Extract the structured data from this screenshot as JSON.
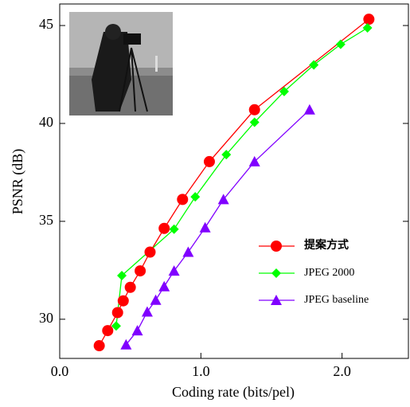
{
  "chart_data": {
    "type": "line",
    "x_label": "Coding rate (bits/pel)",
    "y_label": "PSNR (dB)",
    "xlim": [
      0,
      2.47
    ],
    "ylim": [
      28.0,
      46.1
    ],
    "xticks": [
      {
        "value": 0,
        "label": "0.0"
      },
      {
        "value": 1,
        "label": "1.0"
      },
      {
        "value": 2,
        "label": "2.0"
      }
    ],
    "yticks": [
      30,
      35,
      40,
      45
    ],
    "series": [
      {
        "name": "提案方式",
        "color": "#ff0000",
        "marker": "circle",
        "x": [
          0.28,
          0.34,
          0.41,
          0.45,
          0.5,
          0.57,
          0.64,
          0.74,
          0.87,
          1.06,
          1.38,
          2.19
        ],
        "values": [
          28.65,
          29.42,
          30.34,
          30.94,
          31.63,
          32.47,
          33.43,
          34.64,
          36.12,
          38.05,
          40.7,
          45.32
        ]
      },
      {
        "name": "JPEG 2000",
        "color": "#00ff00",
        "marker": "diamond",
        "x": [
          0.4,
          0.44,
          0.81,
          0.96,
          1.18,
          1.38,
          1.59,
          1.8,
          1.99,
          2.18
        ],
        "values": [
          29.66,
          32.23,
          34.6,
          36.25,
          38.41,
          40.06,
          41.63,
          42.99,
          44.04,
          44.88
        ]
      },
      {
        "name": "JPEG baseline",
        "color": "#8000ff",
        "marker": "triangle",
        "x": [
          0.47,
          0.55,
          0.62,
          0.68,
          0.74,
          0.81,
          0.91,
          1.03,
          1.16,
          1.38,
          1.77
        ],
        "values": [
          28.7,
          29.42,
          30.38,
          30.98,
          31.67,
          32.47,
          33.43,
          34.68,
          36.12,
          38.05,
          40.7
        ]
      }
    ]
  }
}
